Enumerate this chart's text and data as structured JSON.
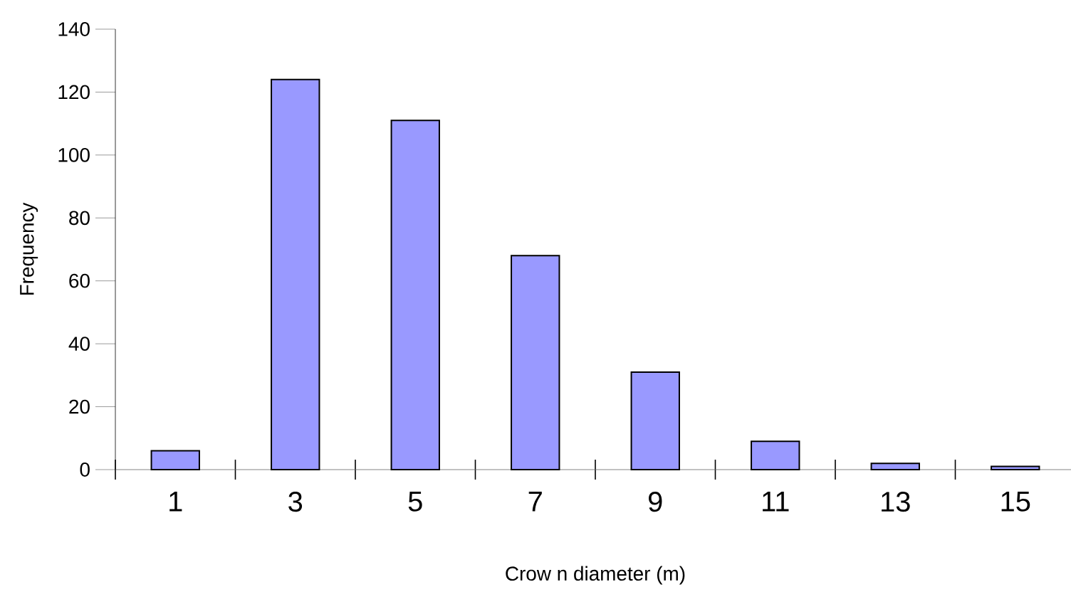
{
  "chart_data": {
    "type": "bar",
    "xlabel": "Crow n diameter (m)",
    "ylabel": "Frequency",
    "categories": [
      "1",
      "3",
      "5",
      "7",
      "9",
      "11",
      "13",
      "15"
    ],
    "values": [
      6,
      124,
      111,
      68,
      31,
      9,
      2,
      1
    ],
    "color": "#9999ff",
    "ylim": [
      0,
      140
    ],
    "yticks": [
      0,
      20,
      40,
      60,
      80,
      100,
      120,
      140
    ]
  }
}
